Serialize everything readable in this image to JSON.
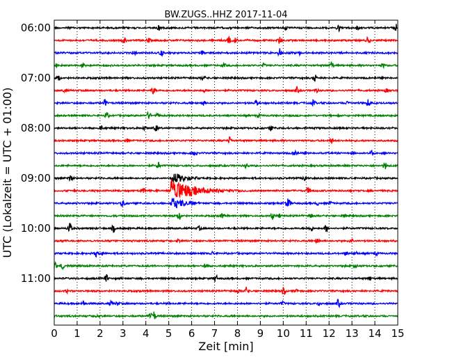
{
  "chart_data": {
    "type": "line",
    "title": "BW.ZUGS..HHZ 2017-11-04",
    "xlabel": "Zeit  [min]",
    "ylabel": "UTC (Lokalzeit = UTC + 01:00)",
    "xlim": [
      0,
      15
    ],
    "x_ticks": [
      "0",
      "1",
      "2",
      "3",
      "4",
      "5",
      "6",
      "7",
      "8",
      "9",
      "10",
      "11",
      "12",
      "13",
      "14",
      "15"
    ],
    "y_ticks": [
      "06:00",
      "07:00",
      "08:00",
      "09:00",
      "10:00",
      "11:00"
    ],
    "grid": "vertical dotted lines at each minute",
    "trace_count": 24,
    "trace_interval_min": 15,
    "trace_colors": [
      "#000000",
      "#ff0000",
      "#0000ff",
      "#008000"
    ],
    "first_trace_start": "06:00",
    "event": {
      "start_time": "09:15",
      "start_min": 5.1,
      "end_min": 9.0,
      "color": "#ff0000"
    }
  }
}
